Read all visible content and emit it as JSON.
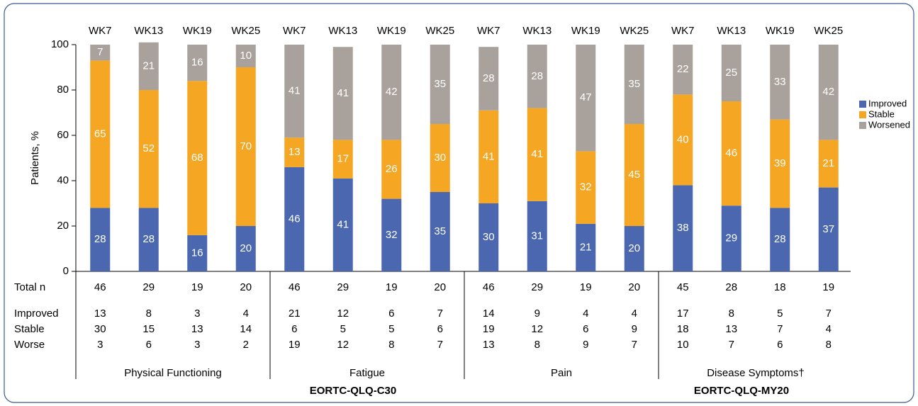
{
  "chart_data": {
    "type": "bar",
    "stacked": true,
    "y_label": "Patients, %",
    "ylim": [
      0,
      100
    ],
    "yticks": [
      0,
      20,
      40,
      60,
      80,
      100
    ],
    "legend_position": "right",
    "scales": [
      {
        "name": "EORTC-QLQ-C30",
        "groups": [
          {
            "name": "Physical Functioning",
            "categories": [
              "WK7",
              "WK13",
              "WK19",
              "WK25"
            ]
          },
          {
            "name": "Fatigue",
            "categories": [
              "WK7",
              "WK13",
              "WK19",
              "WK25"
            ]
          },
          {
            "name": "Pain",
            "categories": [
              "WK7",
              "WK13",
              "WK19",
              "WK25"
            ]
          }
        ]
      },
      {
        "name": "EORTC-QLQ-MY20",
        "groups": [
          {
            "name": "Disease Symptoms†",
            "categories": [
              "WK7",
              "WK13",
              "WK19",
              "WK25"
            ]
          }
        ]
      }
    ],
    "series": [
      {
        "name": "Improved",
        "color": "#4a67b0",
        "values": [
          28,
          28,
          16,
          20,
          46,
          41,
          32,
          35,
          30,
          31,
          21,
          20,
          38,
          29,
          28,
          37
        ]
      },
      {
        "name": "Stable",
        "color": "#f5a623",
        "values": [
          65,
          52,
          68,
          70,
          13,
          17,
          26,
          30,
          41,
          41,
          32,
          45,
          40,
          46,
          39,
          21
        ]
      },
      {
        "name": "Worsened",
        "color": "#a9a29c",
        "values": [
          7,
          21,
          16,
          10,
          41,
          41,
          42,
          35,
          28,
          28,
          47,
          35,
          22,
          25,
          33,
          42
        ]
      }
    ],
    "table": {
      "rows": [
        {
          "label": "Total n",
          "values": [
            46,
            29,
            19,
            20,
            46,
            29,
            19,
            20,
            46,
            29,
            19,
            20,
            45,
            28,
            18,
            19
          ]
        },
        {
          "label": "Improved",
          "values": [
            13,
            8,
            3,
            4,
            21,
            12,
            6,
            7,
            14,
            9,
            4,
            4,
            17,
            8,
            5,
            7
          ]
        },
        {
          "label": "Stable",
          "values": [
            30,
            15,
            13,
            14,
            6,
            5,
            5,
            6,
            19,
            12,
            6,
            9,
            18,
            13,
            7,
            4
          ]
        },
        {
          "label": "Worse",
          "values": [
            3,
            6,
            3,
            2,
            19,
            12,
            8,
            7,
            13,
            8,
            9,
            7,
            10,
            7,
            6,
            8
          ]
        }
      ]
    }
  }
}
